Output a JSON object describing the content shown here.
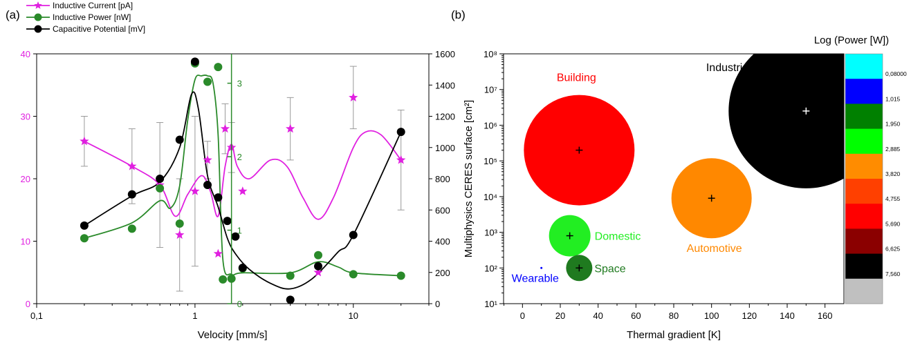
{
  "panels": {
    "a_label": "(a)",
    "b_label": "(b)"
  },
  "chart_data": [
    {
      "type": "line",
      "panel": "(a)",
      "xlabel": "Velocity [mm/s]",
      "x_scale": "log",
      "xlim": [
        0.1,
        30
      ],
      "x_ticks": [
        0.1,
        1,
        10
      ],
      "x_tick_labels": [
        "0,1",
        "1",
        "10"
      ],
      "legend_position": "top-left-outside",
      "axes": {
        "left": {
          "ylim": [
            0,
            40
          ],
          "ticks": [
            0,
            10,
            20,
            30,
            40
          ],
          "color": "#e020e0"
        },
        "right": {
          "ylim": [
            0,
            1600
          ],
          "ticks": [
            0,
            200,
            400,
            600,
            800,
            1000,
            1200,
            1400,
            1600
          ],
          "color": "#000000"
        },
        "inner": {
          "ylim": [
            0,
            3.4
          ],
          "ticks": [
            0,
            1,
            2,
            3
          ],
          "position_x": 1.7,
          "color": "#2a8a2a"
        }
      },
      "series": [
        {
          "name": "Inductive Current [pA]",
          "axis": "left",
          "marker": "star",
          "color": "#e020e0",
          "x": [
            0.2,
            0.4,
            0.6,
            0.8,
            1.0,
            1.2,
            1.4,
            1.55,
            1.7,
            2.0,
            4.0,
            6.0,
            10.0,
            20.0
          ],
          "y": [
            26,
            22,
            19,
            11,
            18,
            23,
            8,
            28,
            25,
            18,
            28,
            5,
            33,
            23
          ],
          "err": [
            4,
            6,
            10,
            9,
            12,
            3,
            0,
            4,
            4,
            0,
            5,
            0,
            5,
            8
          ],
          "curve": [
            [
              0.2,
              26
            ],
            [
              0.4,
              22
            ],
            [
              0.6,
              19
            ],
            [
              0.75,
              14
            ],
            [
              0.9,
              17.5
            ],
            [
              1.1,
              20.5
            ],
            [
              1.25,
              18
            ],
            [
              1.4,
              14
            ],
            [
              1.55,
              22
            ],
            [
              1.7,
              25.5
            ],
            [
              1.85,
              22
            ],
            [
              2.2,
              20
            ],
            [
              3.0,
              23
            ],
            [
              3.8,
              22
            ],
            [
              4.8,
              17
            ],
            [
              6.0,
              13.5
            ],
            [
              7.5,
              17
            ],
            [
              10,
              25
            ],
            [
              12,
              27.5
            ],
            [
              15,
              27
            ],
            [
              20,
              23
            ]
          ]
        },
        {
          "name": "Inductive Power [nW]",
          "axis": "inner",
          "marker": "circle",
          "color": "#2a8a2a",
          "x": [
            0.2,
            0.4,
            0.6,
            0.8,
            1.0,
            1.2,
            1.4,
            1.5,
            1.7,
            2.0,
            4.0,
            6.0,
            10.0,
            20.0
          ],
          "y": [
            0.89,
            1.02,
            1.57,
            1.09,
            3.27,
            3.02,
            3.22,
            0.33,
            0.34,
            0.48,
            0.38,
            0.66,
            0.4,
            0.38
          ],
          "err": [
            0,
            0,
            0,
            0,
            0,
            0,
            0,
            0,
            0,
            0,
            0,
            0,
            0,
            0
          ],
          "curve": [
            [
              0.2,
              0.89
            ],
            [
              0.4,
              1.1
            ],
            [
              0.6,
              1.4
            ],
            [
              0.7,
              1.3
            ],
            [
              0.8,
              1.6
            ],
            [
              0.9,
              2.5
            ],
            [
              1.0,
              3.05
            ],
            [
              1.1,
              3.1
            ],
            [
              1.2,
              3.1
            ],
            [
              1.3,
              3.0
            ],
            [
              1.4,
              2.3
            ],
            [
              1.5,
              0.6
            ],
            [
              1.7,
              0.4
            ],
            [
              2.0,
              0.42
            ],
            [
              4.0,
              0.42
            ],
            [
              6.0,
              0.57
            ],
            [
              8.0,
              0.5
            ],
            [
              10,
              0.42
            ],
            [
              20,
              0.38
            ]
          ]
        },
        {
          "name": "Capacitive Potential [mV]",
          "axis": "right",
          "marker": "circle",
          "color": "#000000",
          "x": [
            0.2,
            0.4,
            0.6,
            0.8,
            1.0,
            1.2,
            1.4,
            1.6,
            1.8,
            2.0,
            4.0,
            6.0,
            10.0,
            20.0
          ],
          "y": [
            500,
            700,
            800,
            1050,
            1550,
            760,
            680,
            530,
            430,
            230,
            25,
            240,
            440,
            1100
          ],
          "err": [
            0,
            0,
            0,
            0,
            0,
            0,
            0,
            0,
            0,
            0,
            0,
            0,
            0,
            0
          ],
          "curve": [
            [
              0.2,
              500
            ],
            [
              0.4,
              690
            ],
            [
              0.6,
              780
            ],
            [
              0.8,
              1000
            ],
            [
              0.95,
              1340
            ],
            [
              1.05,
              1250
            ],
            [
              1.2,
              820
            ],
            [
              1.4,
              620
            ],
            [
              1.6,
              420
            ],
            [
              1.8,
              320
            ],
            [
              2.2,
              220
            ],
            [
              3.0,
              130
            ],
            [
              4.0,
              95
            ],
            [
              5.5,
              160
            ],
            [
              8.0,
              330
            ],
            [
              10,
              440
            ],
            [
              20,
              1100
            ]
          ]
        }
      ]
    },
    {
      "type": "scatter",
      "panel": "(b)",
      "xlabel": "Thermal gradient [K]",
      "ylabel": "Multiphysics CERES surface [cm²]",
      "xlim": [
        -10,
        170
      ],
      "x_ticks": [
        0,
        20,
        40,
        60,
        80,
        100,
        120,
        140,
        160
      ],
      "y_scale": "log",
      "ylim": [
        10,
        100000000
      ],
      "y_tick_labels": [
        "10¹",
        "10²",
        "10³",
        "10⁴",
        "10⁵",
        "10⁶",
        "10⁷",
        "10⁸"
      ],
      "bubbles": [
        {
          "name": "Industrial",
          "x": 150,
          "y": 2500000,
          "r_px": 112,
          "color": "#000000",
          "label_color": "#000000",
          "marker_color": "#ffffff"
        },
        {
          "name": "Building",
          "x": 30,
          "y": 200000,
          "r_px": 80,
          "color": "#ff0000",
          "label_color": "#ff0000",
          "marker_color": "#000000"
        },
        {
          "name": "Automotive",
          "x": 100,
          "y": 9000,
          "r_px": 58,
          "color": "#ff8800",
          "label_color": "#ff8800",
          "marker_color": "#000000"
        },
        {
          "name": "Domestic",
          "x": 25,
          "y": 800,
          "r_px": 30,
          "color": "#22ee22",
          "label_color": "#22ee22",
          "marker_color": "#000000"
        },
        {
          "name": "Space",
          "x": 30,
          "y": 100,
          "r_px": 19,
          "color": "#1f7a1f",
          "label_color": "#1f7a1f",
          "marker_color": "#000000"
        },
        {
          "name": "Wearable",
          "x": 10,
          "y": 100,
          "r_px": 1.5,
          "color": "#0000ff",
          "label_color": "#0000ff",
          "marker_color": "#0000ff"
        }
      ],
      "colorbar": {
        "title": "Log (Power [W])",
        "colors": [
          "#00ffff",
          "#0000ff",
          "#008000",
          "#00ff00",
          "#ff8c00",
          "#ff4000",
          "#ff0000",
          "#8b0000",
          "#000000",
          "#c0c0c0"
        ],
        "labels": [
          "0,08000",
          "1,015",
          "1,950",
          "2,885",
          "3,820",
          "4,755",
          "5,690",
          "6,625",
          "7,560"
        ]
      }
    }
  ]
}
